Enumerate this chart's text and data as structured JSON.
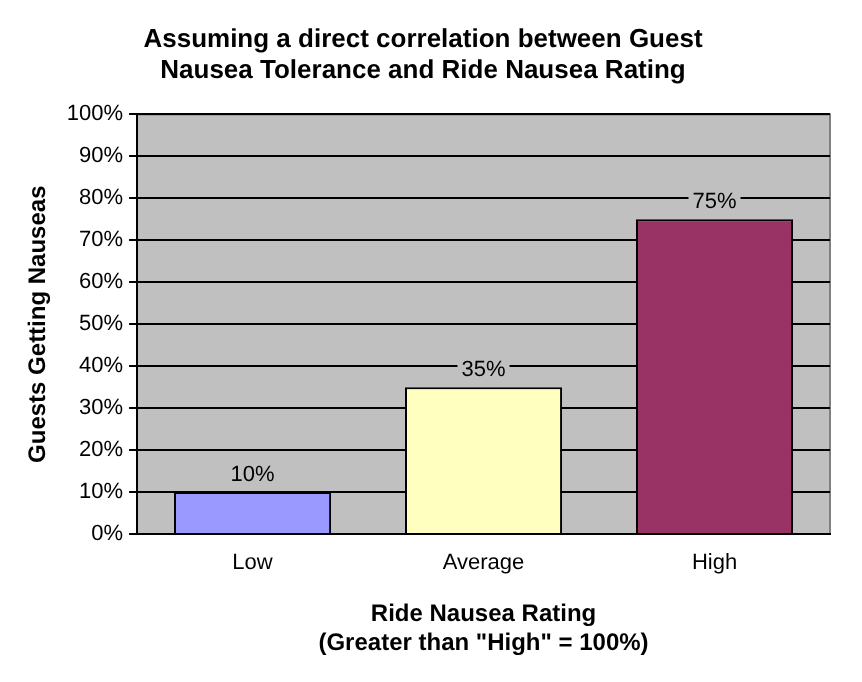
{
  "chart_data": {
    "type": "bar",
    "title": "Assuming a direct correlation between Guest Nausea Tolerance and Ride Nausea Rating",
    "xlabel": "Ride Nausea Rating\n(Greater than \"High\" = 100%)",
    "ylabel": "Guests Getting Nauseas",
    "categories": [
      "Low",
      "Average",
      "High"
    ],
    "values": [
      10,
      35,
      75
    ],
    "colors": [
      "#9999ff",
      "#ffffc0",
      "#993366"
    ],
    "value_labels": [
      "10%",
      "35%",
      "75%"
    ],
    "ylim": [
      0,
      100
    ],
    "yticks": [
      {
        "value": 0,
        "label": "0%"
      },
      {
        "value": 10,
        "label": "10%"
      },
      {
        "value": 20,
        "label": "20%"
      },
      {
        "value": 30,
        "label": "30%"
      },
      {
        "value": 40,
        "label": "40%"
      },
      {
        "value": 50,
        "label": "50%"
      },
      {
        "value": 60,
        "label": "60%"
      },
      {
        "value": 70,
        "label": "70%"
      },
      {
        "value": 80,
        "label": "80%"
      },
      {
        "value": 90,
        "label": "90%"
      },
      {
        "value": 100,
        "label": "100%"
      }
    ],
    "grid": "y",
    "legend": false
  }
}
